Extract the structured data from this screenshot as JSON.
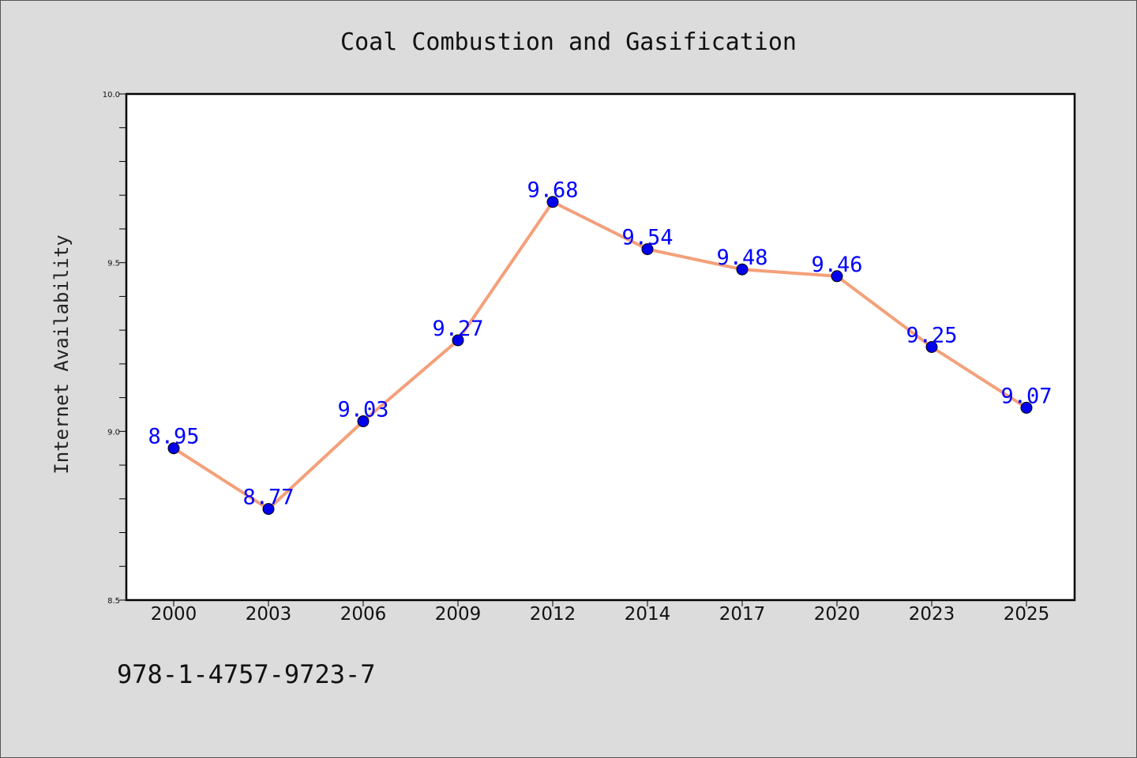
{
  "chart_data": {
    "type": "line",
    "title": "Coal Combustion and Gasification",
    "xlabel": "",
    "ylabel": "Internet Availability",
    "categories": [
      "2000",
      "2003",
      "2006",
      "2009",
      "2012",
      "2014",
      "2017",
      "2020",
      "2023",
      "2025"
    ],
    "values": [
      8.95,
      8.77,
      9.03,
      9.27,
      9.68,
      9.54,
      9.48,
      9.46,
      9.25,
      9.07
    ],
    "data_labels": [
      "8.95",
      "8.77",
      "9.03",
      "9.27",
      "9.68",
      "9.54",
      "9.48",
      "9.46",
      "9.25",
      "9.07"
    ],
    "ylim": [
      8.5,
      10.0
    ],
    "yticks": [
      "8.5",
      "9.0",
      "9.5",
      "10.0"
    ],
    "yminor_step": 0.1,
    "grid": false,
    "legend": "none",
    "line_color": "#f4a07a",
    "marker_color": "#0000ee",
    "label_color": "#0000ff"
  },
  "footer": {
    "isbn": "978-1-4757-9723-7"
  }
}
